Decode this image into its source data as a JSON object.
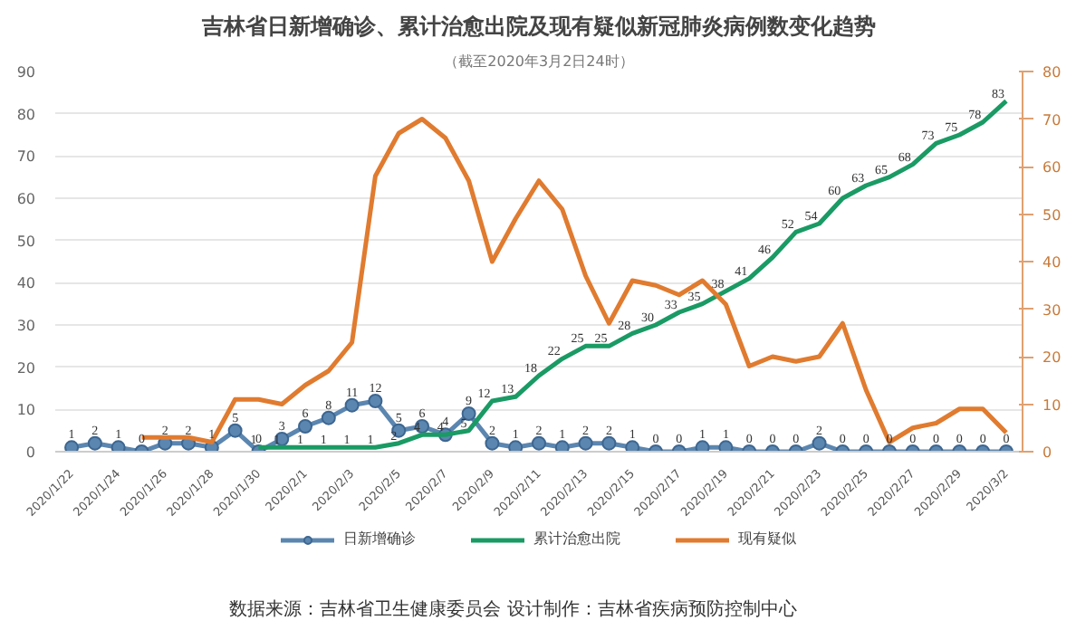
{
  "chart_data": {
    "type": "line",
    "title": "吉林省日新增确诊、累计治愈出院及现有疑似新冠肺炎病例数变化趋势",
    "subtitle": "（截至2020年3月2日24时）",
    "categories": [
      "2020/1/22",
      null,
      "2020/1/24",
      null,
      "2020/1/26",
      null,
      "2020/1/28",
      null,
      "2020/1/30",
      null,
      "2020/2/1",
      null,
      "2020/2/3",
      null,
      "2020/2/5",
      null,
      "2020/2/7",
      null,
      "2020/2/9",
      null,
      "2020/2/11",
      null,
      "2020/2/13",
      null,
      "2020/2/15",
      null,
      "2020/2/17",
      null,
      "2020/2/19",
      null,
      "2020/2/21",
      null,
      "2020/2/23",
      null,
      "2020/2/25",
      null,
      "2020/2/27",
      null,
      "2020/2/29",
      null,
      "2020/3/2"
    ],
    "series": [
      {
        "name": "日新增确诊",
        "color": "#5b86b0",
        "marker": "circle",
        "data_labels": true,
        "values": [
          1,
          2,
          1,
          0,
          2,
          2,
          1,
          5,
          0,
          3,
          6,
          8,
          11,
          12,
          5,
          6,
          4,
          9,
          2,
          1,
          2,
          1,
          2,
          2,
          1,
          0,
          0,
          1,
          1,
          0,
          0,
          0,
          2,
          0,
          0,
          0,
          0,
          0,
          0,
          0,
          0
        ]
      },
      {
        "name": "累计治愈出院",
        "color": "#1a9a64",
        "data_labels": true,
        "values": [
          null,
          null,
          null,
          null,
          null,
          null,
          null,
          null,
          1,
          1,
          1,
          1,
          1,
          1,
          2,
          4,
          4,
          5,
          12,
          13,
          18,
          22,
          25,
          25,
          28,
          30,
          33,
          35,
          38,
          41,
          46,
          52,
          54,
          60,
          63,
          65,
          68,
          73,
          75,
          78,
          83
        ]
      },
      {
        "name": "现有疑似",
        "color": "#e07b2f",
        "axis": "y2",
        "values": [
          null,
          null,
          null,
          3,
          3,
          3,
          2,
          11,
          11,
          10,
          14,
          17,
          23,
          58,
          67,
          70,
          66,
          57,
          40,
          49,
          57,
          51,
          37,
          27,
          36,
          35,
          33,
          36,
          31,
          18,
          20,
          19,
          20,
          27,
          13,
          2,
          5,
          6,
          9,
          9,
          4
        ]
      }
    ],
    "ylim": [
      0,
      90
    ],
    "yticks": [
      0,
      10,
      20,
      30,
      40,
      50,
      60,
      70,
      80,
      90
    ],
    "y2lim": [
      0,
      80
    ],
    "y2ticks": [
      0,
      10,
      20,
      30,
      40,
      50,
      60,
      70,
      80
    ],
    "grid": "y",
    "legend": "bottom",
    "line_style": "solid",
    "annotations": [
      "数据来源：吉林省卫生健康委员会          设计制作：吉林省疾病预防控制中心"
    ]
  }
}
